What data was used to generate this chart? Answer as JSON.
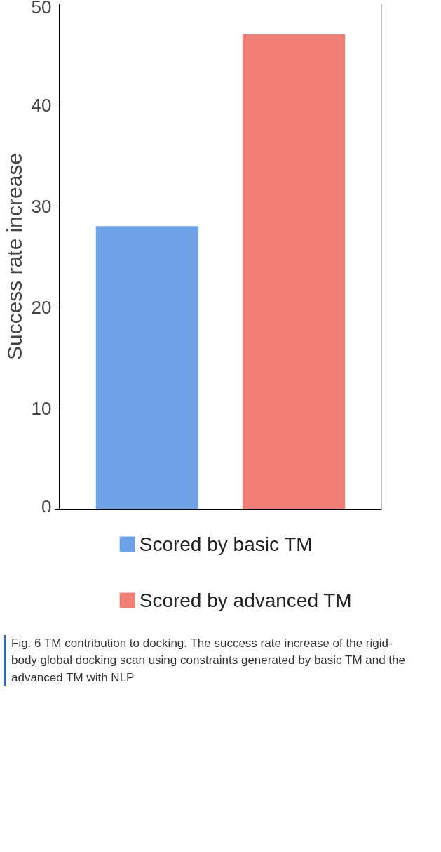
{
  "chart_data": {
    "type": "bar",
    "ylabel": "Success rate increase",
    "categories": [
      null,
      null
    ],
    "series": [
      {
        "name": "Scored by basic TM",
        "color": "#6fa3e8",
        "values": [
          28,
          null
        ]
      },
      {
        "name": "Scored by advanced TM",
        "color": "#f07f78",
        "values": [
          null,
          47
        ]
      }
    ],
    "ylim": [
      0,
      50
    ],
    "yticks": [
      0,
      10,
      20,
      30,
      40,
      50
    ],
    "grid": false,
    "legend": "bottom",
    "annotations": [
      "Fig. 6 TM contribution to docking. The success rate increase of the rigid-body global docking scan using constraints generated by basic TM and the advanced TM with NLP"
    ]
  }
}
